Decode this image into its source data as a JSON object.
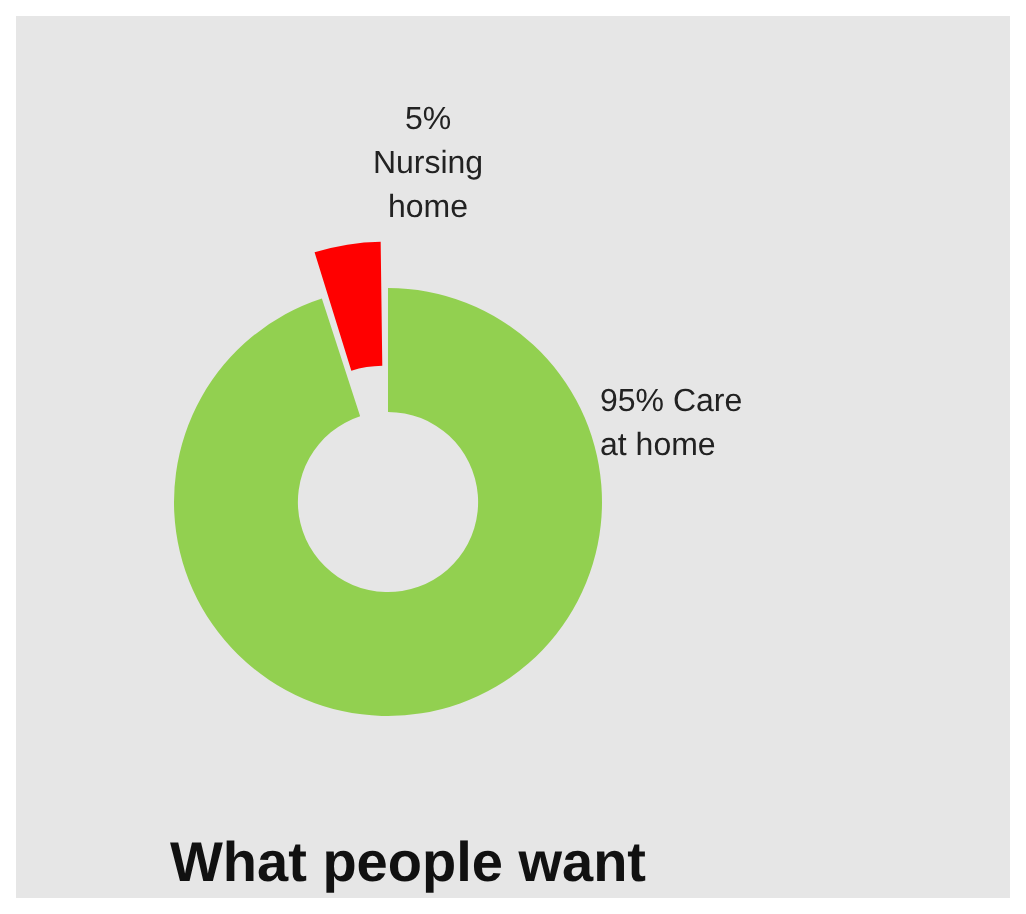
{
  "chart_data": {
    "type": "donut",
    "title": "What people want",
    "categories": [
      "Care at home",
      "Nursing home"
    ],
    "values": [
      95,
      5
    ],
    "value_labels": [
      "95%",
      "5%"
    ],
    "colors": [
      "#92d050",
      "#ff0000"
    ],
    "legend": false
  }
}
